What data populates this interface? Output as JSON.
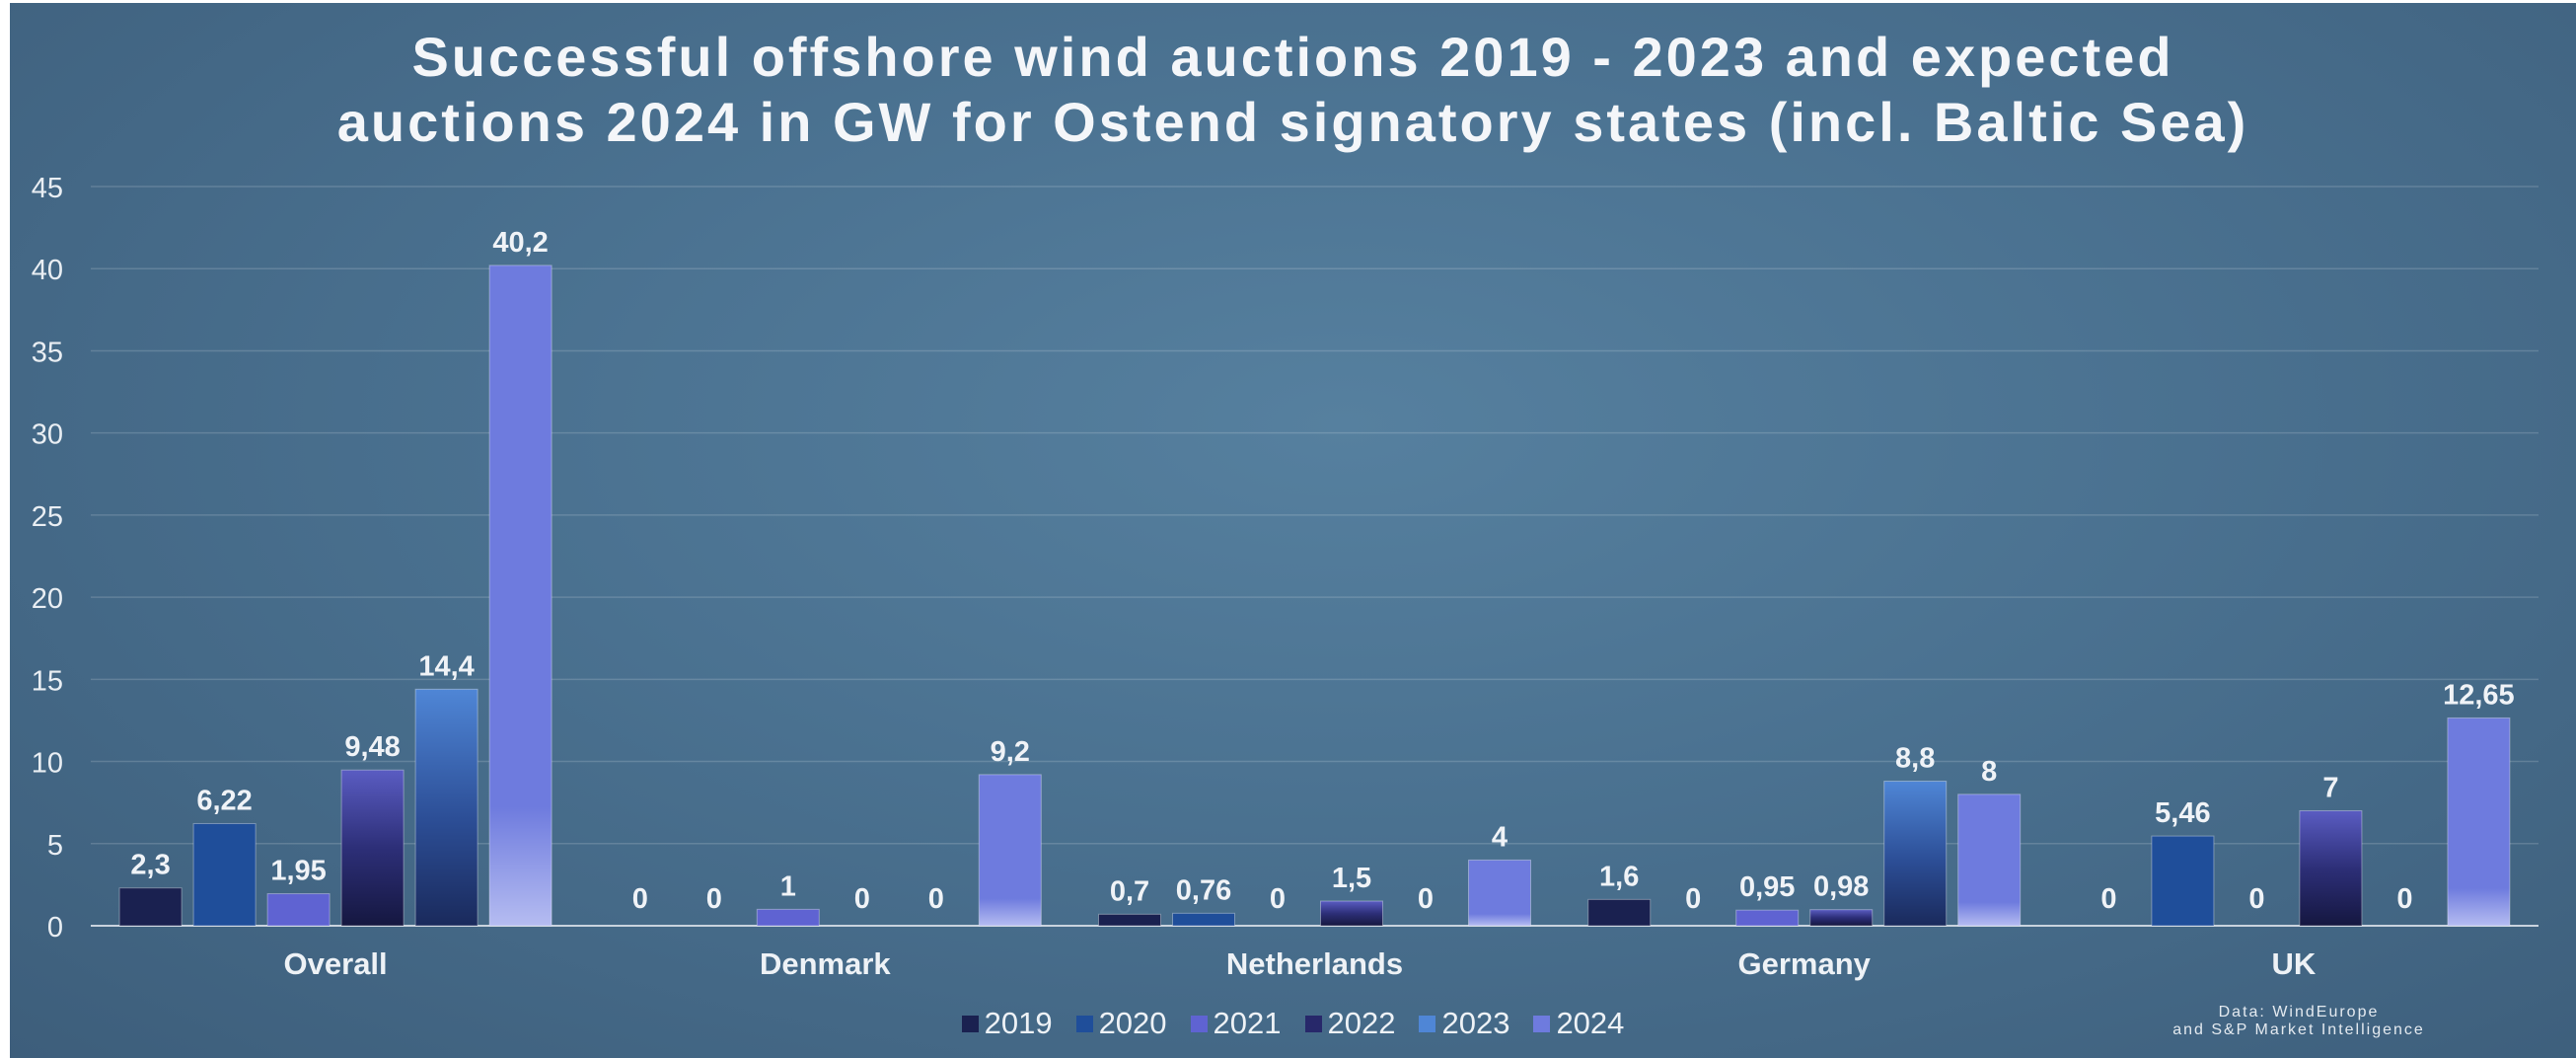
{
  "chart_data": {
    "type": "bar",
    "title_lines": [
      "Successful offshore wind auctions 2019 - 2023 and expected",
      "auctions 2024 in GW for Ostend signatory states (incl. Baltic Sea)"
    ],
    "categories": [
      "Overall",
      "Denmark",
      "Netherlands",
      "Germany",
      "UK"
    ],
    "series": [
      {
        "name": "2019",
        "color": "#1a2150",
        "values": [
          2.3,
          0,
          0.7,
          1.6,
          0
        ],
        "labels": [
          "2,3",
          "0",
          "0,7",
          "1,6",
          "0"
        ]
      },
      {
        "name": "2020",
        "color": "#1f4e9a",
        "values": [
          6.22,
          0,
          0.76,
          0,
          5.46
        ],
        "labels": [
          "6,22",
          "0",
          "0,76",
          "0",
          "5,46"
        ]
      },
      {
        "name": "2021",
        "color": "#5f63d2",
        "values": [
          1.95,
          1,
          0,
          0.95,
          0
        ],
        "labels": [
          "1,95",
          "1",
          "0",
          "0,95",
          "0"
        ]
      },
      {
        "name": "2022",
        "color": "#27286a",
        "values": [
          9.48,
          0,
          1.5,
          0.98,
          7
        ],
        "labels": [
          "9,48",
          "0",
          "1,5",
          "0,98",
          "7"
        ]
      },
      {
        "name": "2023",
        "color": "#4f86d6",
        "values": [
          14.4,
          0,
          0,
          8.8,
          0
        ],
        "labels": [
          "14,4",
          "0",
          "0",
          "8,8",
          "0"
        ]
      },
      {
        "name": "2024",
        "color": "#6e7bde",
        "values": [
          40.2,
          9.2,
          4,
          8,
          12.65
        ],
        "labels": [
          "40,2",
          "9,2",
          "4",
          "8",
          "12,65"
        ]
      }
    ],
    "yticks": [
      "0",
      "5",
      "10",
      "15",
      "20",
      "25",
      "30",
      "35",
      "40",
      "45"
    ],
    "ylim": [
      0,
      45
    ],
    "grid": true,
    "legend_position": "bottom"
  },
  "source_note": [
    "Data: WindEurope",
    "and S&P Market Intelligence"
  ]
}
